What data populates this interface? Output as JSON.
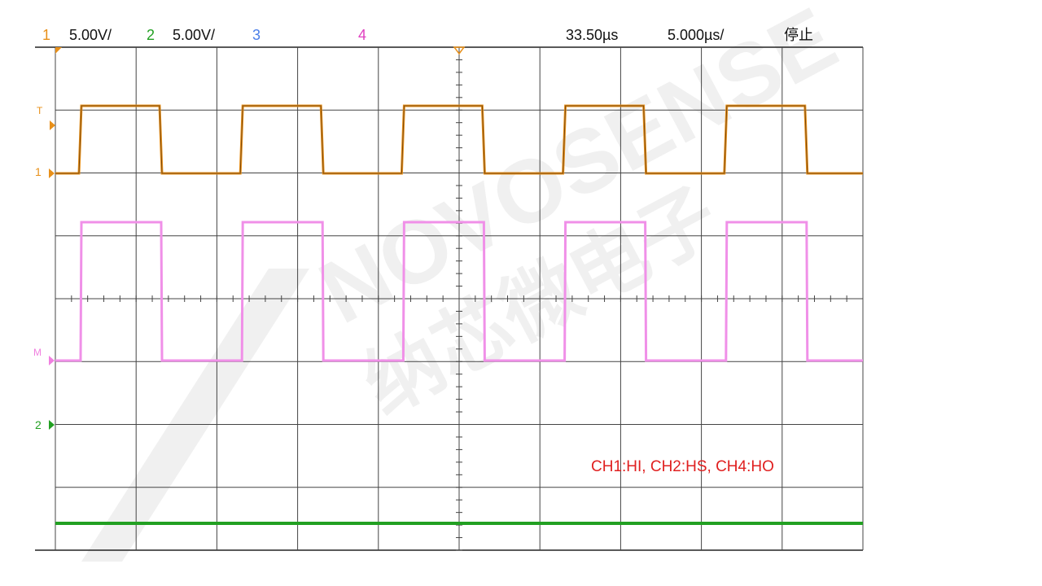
{
  "header": {
    "ch1_label": "1",
    "ch1_scale": "5.00V/",
    "ch2_label": "2",
    "ch2_scale": "5.00V/",
    "ch3_label": "3",
    "ch4_label": "4",
    "trigger_position": "33.50µs",
    "time_scale": "5.000µs/",
    "status": "停止"
  },
  "markers": {
    "trigger": "T",
    "ch1": "1",
    "math": "M",
    "ch2": "2"
  },
  "annotation": "CH1:HI, CH2:HS, CH4:HO",
  "watermark": {
    "brand": "NOVOSENSE",
    "chinese": "纳芯微电子"
  }
}
